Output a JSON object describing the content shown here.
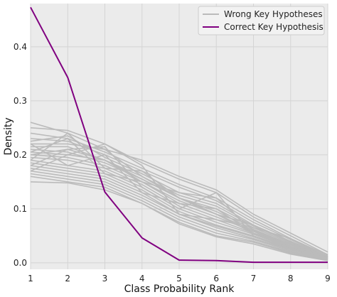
{
  "chart_data": {
    "type": "line",
    "title": "",
    "xlabel": "Class Probability Rank",
    "ylabel": "Density",
    "xlim": [
      1,
      9
    ],
    "ylim": [
      -0.012,
      0.48
    ],
    "xticks": [
      1,
      2,
      3,
      4,
      5,
      6,
      7,
      8,
      9
    ],
    "yticks": [
      0.0,
      0.1,
      0.2,
      0.3,
      0.4
    ],
    "ytick_labels": [
      "0.0",
      "0.1",
      "0.2",
      "0.3",
      "0.4"
    ],
    "grid": true,
    "legend_position": "top-right",
    "colors": {
      "background": "#ebebeb",
      "grid": "#d4d4d4",
      "wrong": "#bbbbbb",
      "correct": "#800080"
    },
    "x": [
      1,
      2,
      3,
      4,
      5,
      6,
      7,
      8,
      9
    ],
    "series": [
      {
        "name": "Wrong Key Hypotheses",
        "color": "#bbbbbb",
        "values": [
          0.2,
          0.21,
          0.19,
          0.155,
          0.12,
          0.09,
          0.055,
          0.03,
          0.008
        ]
      },
      {
        "name": "Correct Key Hypothesis",
        "color": "#800080",
        "values": [
          0.473,
          0.343,
          0.131,
          0.046,
          0.005,
          0.004,
          0.001,
          0.001,
          0.001
        ]
      }
    ],
    "wrong_hypotheses_band": [
      [
        0.26,
        0.24,
        0.21,
        0.19,
        0.16,
        0.135,
        0.09,
        0.055,
        0.02
      ],
      [
        0.25,
        0.245,
        0.22,
        0.185,
        0.155,
        0.13,
        0.085,
        0.05,
        0.015
      ],
      [
        0.24,
        0.23,
        0.205,
        0.175,
        0.145,
        0.12,
        0.08,
        0.045,
        0.014
      ],
      [
        0.23,
        0.225,
        0.2,
        0.17,
        0.14,
        0.115,
        0.075,
        0.043,
        0.012
      ],
      [
        0.225,
        0.235,
        0.195,
        0.165,
        0.13,
        0.11,
        0.07,
        0.04,
        0.012
      ],
      [
        0.22,
        0.22,
        0.21,
        0.16,
        0.125,
        0.105,
        0.068,
        0.038,
        0.011
      ],
      [
        0.215,
        0.215,
        0.19,
        0.16,
        0.12,
        0.1,
        0.065,
        0.036,
        0.01
      ],
      [
        0.21,
        0.205,
        0.185,
        0.155,
        0.12,
        0.095,
        0.062,
        0.034,
        0.01
      ],
      [
        0.205,
        0.2,
        0.19,
        0.15,
        0.115,
        0.09,
        0.06,
        0.033,
        0.009
      ],
      [
        0.2,
        0.195,
        0.18,
        0.15,
        0.11,
        0.085,
        0.058,
        0.031,
        0.009
      ],
      [
        0.195,
        0.19,
        0.175,
        0.145,
        0.105,
        0.08,
        0.055,
        0.03,
        0.008
      ],
      [
        0.19,
        0.18,
        0.17,
        0.14,
        0.1,
        0.075,
        0.053,
        0.028,
        0.007
      ],
      [
        0.185,
        0.175,
        0.165,
        0.135,
        0.095,
        0.07,
        0.05,
        0.027,
        0.007
      ],
      [
        0.18,
        0.17,
        0.16,
        0.13,
        0.09,
        0.068,
        0.048,
        0.025,
        0.006
      ],
      [
        0.175,
        0.165,
        0.155,
        0.125,
        0.09,
        0.065,
        0.045,
        0.024,
        0.006
      ],
      [
        0.17,
        0.16,
        0.15,
        0.12,
        0.085,
        0.06,
        0.043,
        0.022,
        0.005
      ],
      [
        0.165,
        0.155,
        0.145,
        0.115,
        0.08,
        0.055,
        0.04,
        0.02,
        0.005
      ],
      [
        0.16,
        0.15,
        0.14,
        0.11,
        0.075,
        0.05,
        0.038,
        0.018,
        0.004
      ],
      [
        0.15,
        0.148,
        0.135,
        0.11,
        0.072,
        0.048,
        0.035,
        0.016,
        0.004
      ],
      [
        0.205,
        0.23,
        0.165,
        0.15,
        0.13,
        0.12,
        0.06,
        0.03,
        0.008
      ],
      [
        0.18,
        0.21,
        0.215,
        0.14,
        0.1,
        0.13,
        0.05,
        0.025,
        0.007
      ],
      [
        0.19,
        0.24,
        0.175,
        0.17,
        0.12,
        0.09,
        0.07,
        0.04,
        0.01
      ],
      [
        0.22,
        0.18,
        0.2,
        0.13,
        0.11,
        0.1,
        0.055,
        0.035,
        0.009
      ],
      [
        0.17,
        0.2,
        0.22,
        0.18,
        0.09,
        0.08,
        0.065,
        0.045,
        0.011
      ]
    ]
  }
}
